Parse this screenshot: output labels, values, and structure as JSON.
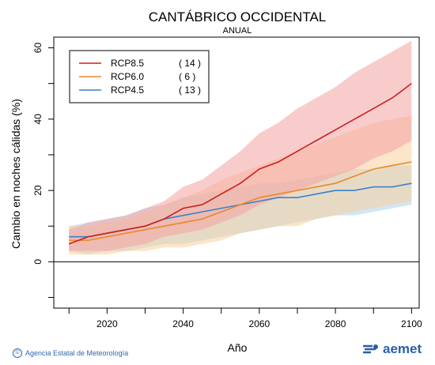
{
  "chart_data": {
    "type": "line",
    "title": "CANTÁBRICO OCCIDENTAL",
    "subtitle": "ANUAL",
    "xlabel": "Año",
    "ylabel": "Cambio en noches cálidas (%)",
    "xlim": [
      2006,
      2102
    ],
    "ylim": [
      -13,
      63
    ],
    "xticks": [
      2020,
      2040,
      2060,
      2080,
      2100
    ],
    "yticks": [
      0,
      20,
      40,
      60
    ],
    "x_minor_ticks": [
      2010,
      2030,
      2050,
      2070,
      2090
    ],
    "y_minor_ticks": [
      -10,
      10,
      30,
      50
    ],
    "zero_line": 0,
    "legend_position": "top-left",
    "series": [
      {
        "name": "RCP8.5",
        "count_label": "( 14 )",
        "color": "#cc1f1f",
        "band_color": "#f4a3a3",
        "x": [
          2010,
          2015,
          2020,
          2025,
          2030,
          2035,
          2040,
          2045,
          2050,
          2055,
          2060,
          2065,
          2070,
          2075,
          2080,
          2085,
          2090,
          2095,
          2100
        ],
        "mean": [
          5,
          7,
          8,
          9,
          10,
          12,
          15,
          16,
          19,
          22,
          26,
          28,
          31,
          34,
          37,
          40,
          43,
          46,
          50
        ],
        "low": [
          3,
          3,
          3,
          4,
          5,
          7,
          8,
          9,
          11,
          13,
          16,
          18,
          20,
          22,
          24,
          26,
          29,
          31,
          34
        ],
        "high": [
          9,
          11,
          12,
          13,
          15,
          17,
          21,
          23,
          27,
          31,
          36,
          39,
          43,
          46,
          49,
          53,
          56,
          59,
          62
        ]
      },
      {
        "name": "RCP6.0",
        "count_label": "(  6 )",
        "color": "#e8892b",
        "band_color": "#f9cf9d",
        "x": [
          2010,
          2015,
          2020,
          2025,
          2030,
          2035,
          2040,
          2045,
          2050,
          2055,
          2060,
          2065,
          2070,
          2075,
          2080,
          2085,
          2090,
          2095,
          2100
        ],
        "mean": [
          6,
          6,
          7,
          8,
          9,
          10,
          11,
          12,
          14,
          16,
          18,
          19,
          20,
          21,
          22,
          24,
          26,
          27,
          28
        ],
        "low": [
          2,
          2,
          2,
          3,
          3,
          4,
          4,
          5,
          6,
          8,
          9,
          10,
          10,
          12,
          13,
          14,
          15,
          16,
          17
        ],
        "high": [
          10,
          10,
          11,
          12,
          14,
          16,
          18,
          20,
          23,
          25,
          27,
          29,
          31,
          33,
          35,
          37,
          39,
          40,
          41
        ]
      },
      {
        "name": "RCP4.5",
        "count_label": "( 13 )",
        "color": "#3a82cc",
        "band_color": "#a9d3ec",
        "x": [
          2010,
          2015,
          2020,
          2025,
          2030,
          2035,
          2040,
          2045,
          2050,
          2055,
          2060,
          2065,
          2070,
          2075,
          2080,
          2085,
          2090,
          2095,
          2100
        ],
        "mean": [
          7,
          7,
          8,
          9,
          10,
          12,
          13,
          14,
          15,
          16,
          17,
          18,
          18,
          19,
          20,
          20,
          21,
          21,
          22
        ],
        "low": [
          3,
          2,
          3,
          3,
          4,
          5,
          5,
          6,
          7,
          8,
          9,
          10,
          11,
          12,
          13,
          13,
          14,
          15,
          16
        ],
        "high": [
          10,
          11,
          12,
          13,
          15,
          16,
          18,
          19,
          20,
          21,
          22,
          22,
          23,
          24,
          25,
          26,
          26,
          27,
          27
        ]
      }
    ]
  },
  "footer": {
    "credit": "Agencia Estatal de Meteorología",
    "copyright_symbol": "©",
    "logo_text": "aemet"
  }
}
